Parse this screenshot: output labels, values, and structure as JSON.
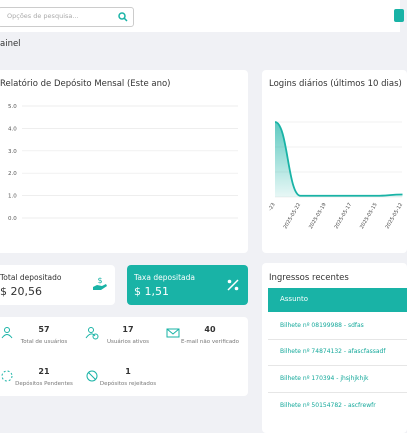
{
  "header": {
    "search_placeholder": "Opções de pesquisa...",
    "page_title": "ainel"
  },
  "chart_data": [
    {
      "type": "line",
      "title": "Relatório de Depósito Mensal (Este ano)",
      "ylim": [
        0,
        5
      ],
      "yticks": [
        {
          "value": 5,
          "label": "5.0"
        },
        {
          "value": 4,
          "label": "4.0"
        },
        {
          "value": 3,
          "label": "3.0"
        },
        {
          "value": 2,
          "label": "2.0"
        },
        {
          "value": 1,
          "label": "1.0"
        },
        {
          "value": 0,
          "label": "0.0"
        }
      ],
      "grid": true
    },
    {
      "type": "line",
      "title": "Logins diários (últimos 10 dias)",
      "categories": [
        "-23",
        "2025-05-22",
        "2025-05-19",
        "2025-05-17",
        "2025-05-15",
        "2025-05-12"
      ],
      "series": [
        {
          "color": "#19b3a6",
          "values": [
            3,
            0.05,
            0.05,
            0.05,
            0.05,
            0.1
          ]
        }
      ],
      "ylim": [
        0,
        4
      ],
      "grid": true
    }
  ],
  "deposits": {
    "total_label": "Total depositado",
    "total_value": "$ 20,56",
    "fee_label": "Taxa depositada",
    "fee_value": "$ 1,51"
  },
  "stats": [
    {
      "value": "57",
      "label": "Total de usuários"
    },
    {
      "value": "17",
      "label": "Usuários ativos"
    },
    {
      "value": "40",
      "label": "E-mail não verificado"
    },
    {
      "value": "21",
      "label": "Depósitos Pendentes"
    },
    {
      "value": "1",
      "label": "Depósitos rejeitados"
    }
  ],
  "tickets": {
    "title": "Ingressos recentes",
    "column": "Assunto",
    "rows": [
      "Bilhete nº 08199988 - sdfas",
      "Bilhete nº 74874132 - afascfassadf",
      "Bilhete nº 170394 - jhsjhjkhjk",
      "Bilhete nº 50154782 - ascfrewfr"
    ]
  }
}
